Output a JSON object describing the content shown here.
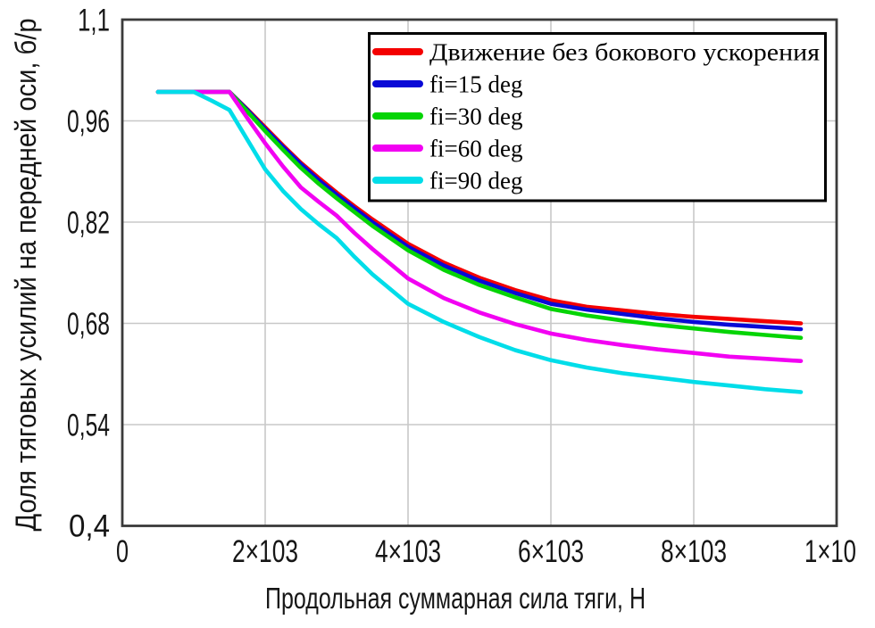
{
  "figure": {
    "background_color": "#ffffff",
    "frame_color": "#3b3b3b",
    "gridline_color": "#c8c8c8"
  },
  "chart_data": {
    "type": "line",
    "title": "",
    "xlabel": "Продольная суммарная сила тяги, Н",
    "ylabel": "Доля тяговых усилий на передней оси, б/р",
    "xlim": [
      0,
      10000
    ],
    "ylim": [
      0.4,
      1.1
    ],
    "grid": true,
    "legend_position": "upper right",
    "x_ticks": [
      0,
      2000,
      4000,
      6000,
      8000,
      10000
    ],
    "x_tick_labels": [
      "0",
      "2×103",
      "4×103",
      "6×103",
      "8×103",
      "1×10"
    ],
    "y_ticks": [
      1.1,
      0.96,
      0.82,
      0.68,
      0.54,
      0.4
    ],
    "y_tick_labels": [
      "1,1",
      "0,96",
      "0,82",
      "0,68",
      "0,54",
      "0,4"
    ],
    "series": [
      {
        "name": "Движение без бокового ускорения",
        "color": "#f40000",
        "points": [
          [
            500,
            1.0
          ],
          [
            1000,
            1.0
          ],
          [
            1500,
            1.0
          ],
          [
            1750,
            0.976
          ],
          [
            2000,
            0.951
          ],
          [
            2250,
            0.926
          ],
          [
            2500,
            0.902
          ],
          [
            2750,
            0.881
          ],
          [
            3000,
            0.861
          ],
          [
            3250,
            0.842
          ],
          [
            3500,
            0.824
          ],
          [
            4000,
            0.79
          ],
          [
            4500,
            0.764
          ],
          [
            5000,
            0.743
          ],
          [
            5500,
            0.726
          ],
          [
            6000,
            0.712
          ],
          [
            6500,
            0.703
          ],
          [
            7000,
            0.698
          ],
          [
            7500,
            0.693
          ],
          [
            8000,
            0.689
          ],
          [
            8500,
            0.686
          ],
          [
            9000,
            0.683
          ],
          [
            9500,
            0.68
          ]
        ]
      },
      {
        "name": "fi=15 deg",
        "color": "#0909d6",
        "points": [
          [
            500,
            1.0
          ],
          [
            1000,
            1.0
          ],
          [
            1500,
            1.0
          ],
          [
            1750,
            0.975
          ],
          [
            2000,
            0.949
          ],
          [
            2250,
            0.924
          ],
          [
            2500,
            0.9
          ],
          [
            2750,
            0.878
          ],
          [
            3000,
            0.858
          ],
          [
            3250,
            0.839
          ],
          [
            3500,
            0.82
          ],
          [
            4000,
            0.786
          ],
          [
            4500,
            0.76
          ],
          [
            5000,
            0.739
          ],
          [
            5500,
            0.722
          ],
          [
            6000,
            0.707
          ],
          [
            6500,
            0.699
          ],
          [
            7000,
            0.693
          ],
          [
            7500,
            0.687
          ],
          [
            8000,
            0.682
          ],
          [
            8500,
            0.678
          ],
          [
            9000,
            0.675
          ],
          [
            9500,
            0.672
          ]
        ]
      },
      {
        "name": "fi=30 deg",
        "color": "#05d405",
        "points": [
          [
            500,
            1.0
          ],
          [
            1000,
            1.0
          ],
          [
            1500,
            1.0
          ],
          [
            1750,
            0.973
          ],
          [
            2000,
            0.946
          ],
          [
            2250,
            0.92
          ],
          [
            2500,
            0.895
          ],
          [
            2750,
            0.873
          ],
          [
            3000,
            0.853
          ],
          [
            3250,
            0.834
          ],
          [
            3500,
            0.815
          ],
          [
            4000,
            0.781
          ],
          [
            4500,
            0.754
          ],
          [
            5000,
            0.733
          ],
          [
            5500,
            0.716
          ],
          [
            6000,
            0.7
          ],
          [
            6500,
            0.691
          ],
          [
            7000,
            0.684
          ],
          [
            7500,
            0.678
          ],
          [
            8000,
            0.673
          ],
          [
            8500,
            0.668
          ],
          [
            9000,
            0.664
          ],
          [
            9500,
            0.66
          ]
        ]
      },
      {
        "name": "fi=60 deg",
        "color": "#f201f2",
        "points": [
          [
            500,
            1.0
          ],
          [
            1000,
            1.0
          ],
          [
            1500,
            1.0
          ],
          [
            1750,
            0.964
          ],
          [
            2000,
            0.929
          ],
          [
            2250,
            0.897
          ],
          [
            2500,
            0.868
          ],
          [
            2750,
            0.848
          ],
          [
            3000,
            0.829
          ],
          [
            3250,
            0.805
          ],
          [
            3500,
            0.783
          ],
          [
            4000,
            0.742
          ],
          [
            4500,
            0.715
          ],
          [
            5000,
            0.695
          ],
          [
            5500,
            0.679
          ],
          [
            6000,
            0.666
          ],
          [
            6500,
            0.657
          ],
          [
            7000,
            0.65
          ],
          [
            7500,
            0.644
          ],
          [
            8000,
            0.639
          ],
          [
            8500,
            0.634
          ],
          [
            9000,
            0.631
          ],
          [
            9500,
            0.628
          ]
        ]
      },
      {
        "name": "fi=90 deg",
        "color": "#00dde9",
        "points": [
          [
            500,
            1.0
          ],
          [
            1000,
            1.0
          ],
          [
            1250,
            0.988
          ],
          [
            1500,
            0.975
          ],
          [
            1750,
            0.934
          ],
          [
            2000,
            0.893
          ],
          [
            2250,
            0.863
          ],
          [
            2500,
            0.838
          ],
          [
            2750,
            0.817
          ],
          [
            3000,
            0.798
          ],
          [
            3250,
            0.772
          ],
          [
            3500,
            0.748
          ],
          [
            4000,
            0.707
          ],
          [
            4500,
            0.682
          ],
          [
            5000,
            0.661
          ],
          [
            5500,
            0.643
          ],
          [
            6000,
            0.629
          ],
          [
            6500,
            0.619
          ],
          [
            7000,
            0.611
          ],
          [
            7500,
            0.605
          ],
          [
            8000,
            0.599
          ],
          [
            8500,
            0.594
          ],
          [
            9000,
            0.589
          ],
          [
            9500,
            0.585
          ]
        ]
      }
    ]
  }
}
